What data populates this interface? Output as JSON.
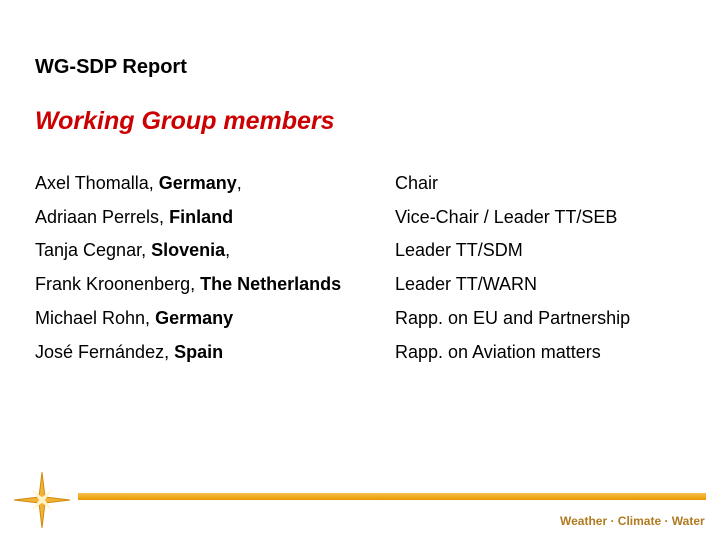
{
  "header": {
    "title": "WG-SDP Report"
  },
  "slide": {
    "title": "Working Group members",
    "members": [
      {
        "name": "Axel Thomalla,",
        "country": "Germany",
        "suffix": ",",
        "role": "Chair"
      },
      {
        "name": "Adriaan Perrels,",
        "country": "Finland",
        "role": "Vice-Chair / Leader TT/SEB"
      },
      {
        "name": "Tanja Cegnar,",
        "country": "Slovenia",
        "suffix": ",",
        "role": "Leader TT/SDM"
      },
      {
        "name": "Frank Kroonenberg,",
        "country": "The Netherlands",
        "role": "Leader TT/WARN"
      },
      {
        "name": "Michael Rohn,",
        "country": "Germany",
        "role": "Rapp. on EU and Partnership"
      },
      {
        "name": "José Fernández,",
        "country": "Spain",
        "role": "Rapp. on Aviation matters"
      }
    ]
  },
  "footer": {
    "tagline": "Weather · Climate · Water"
  }
}
